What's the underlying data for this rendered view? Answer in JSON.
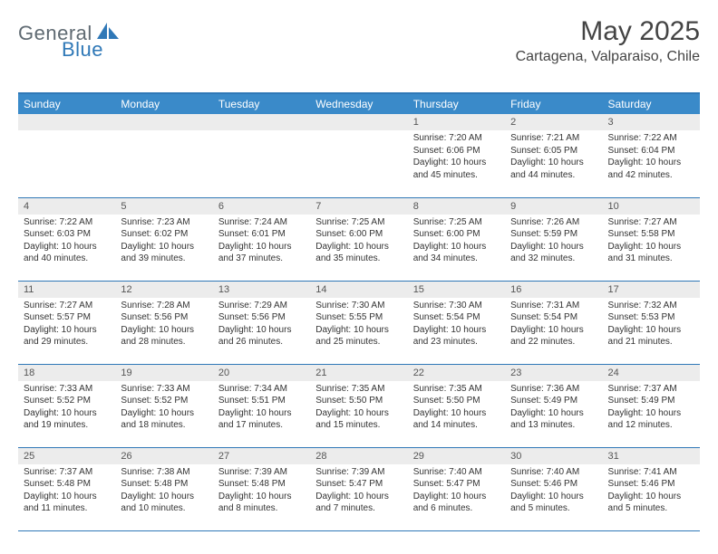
{
  "logo": {
    "word1": "General",
    "word2": "Blue"
  },
  "title": "May 2025",
  "location": "Cartagena, Valparaiso, Chile",
  "colors": {
    "header_bar": "#3a8ac9",
    "header_border": "#2f78b7",
    "daynum_bg": "#ececec",
    "text": "#333333",
    "logo_gray": "#5f6a72",
    "logo_blue": "#2f78b7",
    "background": "#ffffff"
  },
  "fonts": {
    "base_family": "Arial",
    "title_size_pt": 30,
    "location_size_pt": 16,
    "daytext_size_pt": 10
  },
  "weekdays": [
    "Sunday",
    "Monday",
    "Tuesday",
    "Wednesday",
    "Thursday",
    "Friday",
    "Saturday"
  ],
  "grid": {
    "rows": 5,
    "cols": 7,
    "first_weekday_index": 4,
    "days_in_month": 31
  },
  "days": {
    "1": {
      "sunrise": "7:20 AM",
      "sunset": "6:06 PM",
      "daylight": "10 hours and 45 minutes."
    },
    "2": {
      "sunrise": "7:21 AM",
      "sunset": "6:05 PM",
      "daylight": "10 hours and 44 minutes."
    },
    "3": {
      "sunrise": "7:22 AM",
      "sunset": "6:04 PM",
      "daylight": "10 hours and 42 minutes."
    },
    "4": {
      "sunrise": "7:22 AM",
      "sunset": "6:03 PM",
      "daylight": "10 hours and 40 minutes."
    },
    "5": {
      "sunrise": "7:23 AM",
      "sunset": "6:02 PM",
      "daylight": "10 hours and 39 minutes."
    },
    "6": {
      "sunrise": "7:24 AM",
      "sunset": "6:01 PM",
      "daylight": "10 hours and 37 minutes."
    },
    "7": {
      "sunrise": "7:25 AM",
      "sunset": "6:00 PM",
      "daylight": "10 hours and 35 minutes."
    },
    "8": {
      "sunrise": "7:25 AM",
      "sunset": "6:00 PM",
      "daylight": "10 hours and 34 minutes."
    },
    "9": {
      "sunrise": "7:26 AM",
      "sunset": "5:59 PM",
      "daylight": "10 hours and 32 minutes."
    },
    "10": {
      "sunrise": "7:27 AM",
      "sunset": "5:58 PM",
      "daylight": "10 hours and 31 minutes."
    },
    "11": {
      "sunrise": "7:27 AM",
      "sunset": "5:57 PM",
      "daylight": "10 hours and 29 minutes."
    },
    "12": {
      "sunrise": "7:28 AM",
      "sunset": "5:56 PM",
      "daylight": "10 hours and 28 minutes."
    },
    "13": {
      "sunrise": "7:29 AM",
      "sunset": "5:56 PM",
      "daylight": "10 hours and 26 minutes."
    },
    "14": {
      "sunrise": "7:30 AM",
      "sunset": "5:55 PM",
      "daylight": "10 hours and 25 minutes."
    },
    "15": {
      "sunrise": "7:30 AM",
      "sunset": "5:54 PM",
      "daylight": "10 hours and 23 minutes."
    },
    "16": {
      "sunrise": "7:31 AM",
      "sunset": "5:54 PM",
      "daylight": "10 hours and 22 minutes."
    },
    "17": {
      "sunrise": "7:32 AM",
      "sunset": "5:53 PM",
      "daylight": "10 hours and 21 minutes."
    },
    "18": {
      "sunrise": "7:33 AM",
      "sunset": "5:52 PM",
      "daylight": "10 hours and 19 minutes."
    },
    "19": {
      "sunrise": "7:33 AM",
      "sunset": "5:52 PM",
      "daylight": "10 hours and 18 minutes."
    },
    "20": {
      "sunrise": "7:34 AM",
      "sunset": "5:51 PM",
      "daylight": "10 hours and 17 minutes."
    },
    "21": {
      "sunrise": "7:35 AM",
      "sunset": "5:50 PM",
      "daylight": "10 hours and 15 minutes."
    },
    "22": {
      "sunrise": "7:35 AM",
      "sunset": "5:50 PM",
      "daylight": "10 hours and 14 minutes."
    },
    "23": {
      "sunrise": "7:36 AM",
      "sunset": "5:49 PM",
      "daylight": "10 hours and 13 minutes."
    },
    "24": {
      "sunrise": "7:37 AM",
      "sunset": "5:49 PM",
      "daylight": "10 hours and 12 minutes."
    },
    "25": {
      "sunrise": "7:37 AM",
      "sunset": "5:48 PM",
      "daylight": "10 hours and 11 minutes."
    },
    "26": {
      "sunrise": "7:38 AM",
      "sunset": "5:48 PM",
      "daylight": "10 hours and 10 minutes."
    },
    "27": {
      "sunrise": "7:39 AM",
      "sunset": "5:48 PM",
      "daylight": "10 hours and 8 minutes."
    },
    "28": {
      "sunrise": "7:39 AM",
      "sunset": "5:47 PM",
      "daylight": "10 hours and 7 minutes."
    },
    "29": {
      "sunrise": "7:40 AM",
      "sunset": "5:47 PM",
      "daylight": "10 hours and 6 minutes."
    },
    "30": {
      "sunrise": "7:40 AM",
      "sunset": "5:46 PM",
      "daylight": "10 hours and 5 minutes."
    },
    "31": {
      "sunrise": "7:41 AM",
      "sunset": "5:46 PM",
      "daylight": "10 hours and 5 minutes."
    }
  },
  "labels": {
    "sunrise": "Sunrise: ",
    "sunset": "Sunset: ",
    "daylight": "Daylight: "
  }
}
